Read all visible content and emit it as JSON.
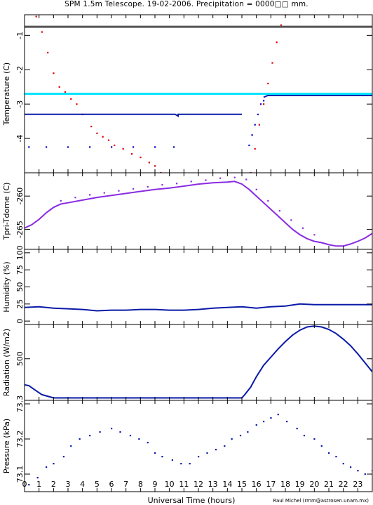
{
  "title": "SPM 1.5m Telescope. 19-02-2006. Precipitation = 0000□□ mm.",
  "xlabel": "Universal Time (hours)",
  "credit": "Raul Michel (rmm@astrosen.unam.mx)",
  "colors": {
    "red": "#e00000",
    "blue": "#0000cc",
    "navy": "#0a1aa8",
    "purple": "#8a2be2",
    "cyan": "#00e5ff",
    "gray": "#555555"
  },
  "chart_data": [
    {
      "type": "line",
      "ylabel": "Temperature (C)",
      "xlim": [
        0,
        24
      ],
      "ylim": [
        -5,
        -0.4
      ],
      "yticks": [
        -1,
        -2,
        -3,
        -4
      ],
      "series": [
        {
          "color": "red",
          "style": "dots",
          "x": [
            0.8,
            1.2,
            1.6,
            2.0,
            2.4,
            2.8,
            3.2,
            3.6,
            4.0,
            4.6,
            5.0,
            5.4,
            5.8,
            6.2,
            6.8,
            7.4,
            8.0,
            8.6,
            9.0,
            9.4
          ],
          "y": [
            -0.45,
            -0.9,
            -1.5,
            -2.1,
            -2.5,
            -2.65,
            -2.85,
            -3.0,
            -3.3,
            -3.65,
            -3.85,
            -3.95,
            -4.05,
            -4.2,
            -4.3,
            -4.45,
            -4.55,
            -4.7,
            -4.8,
            -5.0
          ]
        },
        {
          "color": "red",
          "style": "dots",
          "x": [
            15.6,
            15.9,
            16.2,
            16.5,
            16.8,
            17.1,
            17.4,
            17.7,
            18.0
          ],
          "y": [
            -5.0,
            -4.3,
            -3.6,
            -3.0,
            -2.4,
            -1.8,
            -1.2,
            -0.7,
            -0.4
          ]
        },
        {
          "color": "blue",
          "style": "dots",
          "x": [
            0.3,
            1.5,
            3.0,
            4.5,
            6.0,
            7.5,
            9.0,
            10.3
          ],
          "y": [
            -4.25,
            -4.25,
            -4.25,
            -4.25,
            -4.25,
            -4.25,
            -4.25,
            -4.25
          ]
        },
        {
          "color": "navy",
          "style": "line",
          "x": [
            0,
            10.4,
            10.6,
            10.6,
            15.0
          ],
          "y": [
            -3.3,
            -3.3,
            -3.35,
            -3.3,
            -3.3
          ]
        },
        {
          "color": "navy",
          "style": "line",
          "x": [
            16.5,
            16.8,
            24
          ],
          "y": [
            -2.8,
            -2.75,
            -2.75
          ]
        },
        {
          "color": "blue",
          "style": "dots",
          "x": [
            15.5,
            15.7,
            15.9,
            16.1,
            16.3,
            16.5
          ],
          "y": [
            -4.2,
            -3.9,
            -3.6,
            -3.3,
            -3.0,
            -2.9
          ]
        },
        {
          "color": "cyan",
          "style": "line",
          "x": [
            0,
            24
          ],
          "y": [
            -2.7,
            -2.7
          ]
        },
        {
          "color": "gray",
          "style": "line",
          "x": [
            0,
            24
          ],
          "y": [
            -0.75,
            -0.75
          ]
        }
      ]
    },
    {
      "type": "line",
      "ylabel": "Tpri-Tdome (C)",
      "xlim": [
        0,
        24
      ],
      "ylim": [
        -268,
        -256.5
      ],
      "yticks": [
        -260,
        -265
      ],
      "series": [
        {
          "color": "purple",
          "style": "line",
          "x": [
            0,
            0.5,
            1.0,
            1.5,
            2.0,
            2.5,
            3.0,
            4.0,
            5.0,
            6.0,
            7.0,
            8.0,
            9.0,
            10.0,
            11.0,
            12.0,
            13.0,
            14.0,
            14.5,
            15.0,
            15.5,
            16.0,
            16.5,
            17.0,
            17.5,
            18.0,
            18.5,
            19.0,
            19.5,
            20.0,
            20.5,
            21.0,
            21.5,
            22.0,
            22.5,
            23.0,
            23.5,
            24.0
          ],
          "y": [
            -264.8,
            -264.3,
            -263.5,
            -262.5,
            -261.7,
            -261.2,
            -261.0,
            -260.6,
            -260.2,
            -259.9,
            -259.6,
            -259.3,
            -259.0,
            -258.8,
            -258.5,
            -258.2,
            -258.0,
            -257.9,
            -257.8,
            -258.2,
            -259.0,
            -260.0,
            -261.0,
            -262.0,
            -263.0,
            -264.0,
            -265.0,
            -265.8,
            -266.4,
            -266.8,
            -267.0,
            -267.3,
            -267.5,
            -267.5,
            -267.2,
            -266.8,
            -266.3,
            -265.6
          ]
        },
        {
          "color": "purple",
          "style": "dots",
          "x": [
            2.5,
            3.5,
            4.5,
            5.5,
            6.5,
            7.5,
            8.5,
            9.5,
            10.5,
            11.5,
            12.5,
            13.5,
            14.5,
            15.3,
            16.0,
            16.8,
            17.6,
            18.4,
            19.2,
            20.0
          ],
          "y": [
            -260.7,
            -260.2,
            -259.8,
            -259.5,
            -259.2,
            -258.9,
            -258.6,
            -258.3,
            -258.1,
            -257.8,
            -257.6,
            -257.3,
            -257.2,
            -257.5,
            -259.0,
            -260.7,
            -262.2,
            -263.6,
            -264.8,
            -265.8
          ]
        }
      ]
    },
    {
      "type": "line",
      "ylabel": "Humidity (%)",
      "xlim": [
        0,
        24
      ],
      "ylim": [
        -5,
        105
      ],
      "yticks": [
        0,
        25,
        50,
        75,
        100
      ],
      "series": [
        {
          "color": "navy",
          "style": "line",
          "x": [
            0,
            1,
            2,
            3,
            4,
            5,
            6,
            7,
            8,
            9,
            10,
            11,
            12,
            13,
            14,
            15,
            16,
            17,
            18,
            19,
            20,
            21,
            22,
            23,
            24
          ],
          "y": [
            20,
            21,
            19,
            18,
            17,
            15,
            16,
            16,
            17,
            17,
            16,
            16,
            17,
            19,
            20,
            21,
            19,
            21,
            22,
            25,
            24,
            24,
            24,
            24,
            24
          ]
        }
      ]
    },
    {
      "type": "line",
      "ylabel": "Radiation (W/m2)",
      "xlim": [
        0,
        24
      ],
      "ylim": [
        -10,
        920
      ],
      "yticks": [
        500
      ],
      "series": [
        {
          "color": "navy",
          "style": "line",
          "x": [
            0,
            0.3,
            0.7,
            1.2,
            2.0,
            5.0,
            10.0,
            15.0,
            15.2,
            15.6,
            16.0,
            16.5,
            17.0,
            17.5,
            18.0,
            18.5,
            19.0,
            19.5,
            20.0,
            20.5,
            21.0,
            21.5,
            22.0,
            22.5,
            23.0,
            23.5,
            24.0
          ],
          "y": [
            180,
            170,
            120,
            60,
            20,
            20,
            20,
            20,
            60,
            150,
            280,
            420,
            520,
            620,
            710,
            790,
            850,
            890,
            900,
            890,
            860,
            810,
            740,
            660,
            560,
            450,
            340
          ]
        }
      ]
    },
    {
      "type": "scatter",
      "ylabel": "Pressure (kPa)",
      "xlim": [
        0,
        24
      ],
      "ylim": [
        73.05,
        73.31
      ],
      "yticks": [
        73.1,
        73.2,
        73.3
      ],
      "series": [
        {
          "color": "navy",
          "style": "dots",
          "x": [
            0.3,
            0.9,
            1.5,
            2.0,
            2.7,
            3.2,
            3.8,
            4.5,
            5.2,
            6.0,
            6.6,
            7.3,
            7.9,
            8.5,
            9.0,
            9.5,
            10.2,
            10.8,
            11.4,
            12.0,
            12.6,
            13.2,
            13.8,
            14.3,
            14.9,
            15.4,
            16.0,
            16.5,
            17.0,
            17.5,
            18.1,
            18.8,
            19.3,
            20.0,
            20.5,
            21.0,
            21.5,
            22.0,
            22.5,
            23.0,
            23.5,
            24.0
          ],
          "y": [
            73.07,
            73.09,
            73.12,
            73.13,
            73.15,
            73.18,
            73.2,
            73.21,
            73.22,
            73.23,
            73.22,
            73.21,
            73.2,
            73.19,
            73.16,
            73.15,
            73.14,
            73.13,
            73.13,
            73.15,
            73.16,
            73.17,
            73.18,
            73.2,
            73.21,
            73.22,
            73.24,
            73.25,
            73.26,
            73.27,
            73.25,
            73.23,
            73.21,
            73.2,
            73.18,
            73.16,
            73.15,
            73.13,
            73.12,
            73.11,
            73.1,
            73.11
          ]
        }
      ]
    }
  ]
}
